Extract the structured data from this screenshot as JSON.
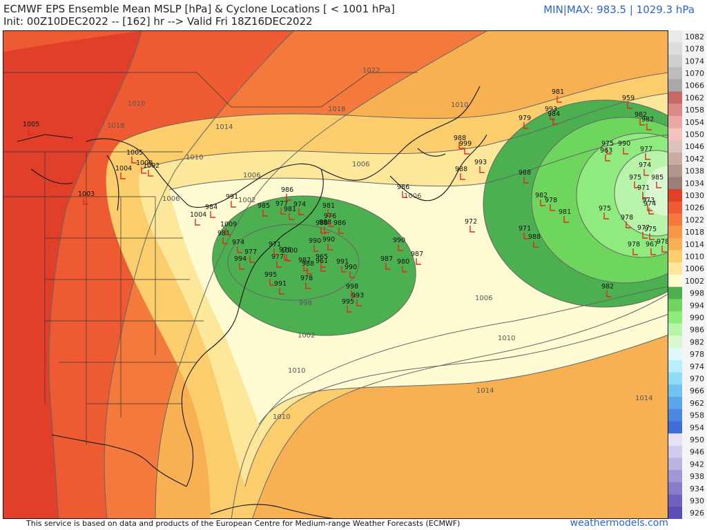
{
  "title_line1": "ECMWF EPS Ensemble Mean MSLP [hPa] & Cyclone Locations [ < 1001 hPa]",
  "title_line2": "Init: 00Z10DEC2022 -- [162] hr --> Valid Fri 18Z16DEC2022",
  "minmax": "MIN|MAX: 983.5 | 1029.3 hPa",
  "footer": "This service is based on data and products of the European Centre for Medium-range Weather Forecasts (ECMWF)",
  "brand": "weathermodels.com",
  "colors": {
    "cyclone_marker": "#e0291f",
    "contour": "#666666",
    "coast": "#111111"
  },
  "colorbar": [
    {
      "label": "1082",
      "color": "#e9e9e9"
    },
    {
      "label": "1078",
      "color": "#dcdcdc"
    },
    {
      "label": "1074",
      "color": "#cfcfcf"
    },
    {
      "label": "1070",
      "color": "#bdbdbd"
    },
    {
      "label": "1066",
      "color": "#a9a9a9"
    },
    {
      "label": "1062",
      "color": "#c76a66"
    },
    {
      "label": "1058",
      "color": "#d98a87"
    },
    {
      "label": "1054",
      "color": "#e9a6a2"
    },
    {
      "label": "1050",
      "color": "#f2c3bf"
    },
    {
      "label": "1046",
      "color": "#dcc2bc"
    },
    {
      "label": "1042",
      "color": "#c9aca4"
    },
    {
      "label": "1038",
      "color": "#b1968d"
    },
    {
      "label": "1034",
      "color": "#9a7f78"
    },
    {
      "label": "1030",
      "color": "#e23f2b"
    },
    {
      "label": "1026",
      "color": "#ee5b32"
    },
    {
      "label": "1022",
      "color": "#f4793c"
    },
    {
      "label": "1018",
      "color": "#f69748"
    },
    {
      "label": "1014",
      "color": "#f8b152"
    },
    {
      "label": "1010",
      "color": "#fbcd6c"
    },
    {
      "label": "1006",
      "color": "#fde79a"
    },
    {
      "label": "1002",
      "color": "#fffbd2"
    },
    {
      "label": "998",
      "color": "#4cb050"
    },
    {
      "label": "994",
      "color": "#6fd65d"
    },
    {
      "label": "990",
      "color": "#8feb7e"
    },
    {
      "label": "986",
      "color": "#b7f4a9"
    },
    {
      "label": "982",
      "color": "#daf8d0"
    },
    {
      "label": "978",
      "color": "#dff8fb"
    },
    {
      "label": "974",
      "color": "#b9eefa"
    },
    {
      "label": "970",
      "color": "#8fdcf5"
    },
    {
      "label": "966",
      "color": "#71c3f0"
    },
    {
      "label": "962",
      "color": "#5aa6e8"
    },
    {
      "label": "958",
      "color": "#4b88df"
    },
    {
      "label": "954",
      "color": "#3f6fd6"
    },
    {
      "label": "950",
      "color": "#e6e2f4"
    },
    {
      "label": "946",
      "color": "#d2ccec"
    },
    {
      "label": "942",
      "color": "#bab2e1"
    },
    {
      "label": "938",
      "color": "#a197d6"
    },
    {
      "label": "934",
      "color": "#887ccb"
    },
    {
      "label": "930",
      "color": "#7063c0"
    },
    {
      "label": "926",
      "color": "#5b4eb5"
    }
  ],
  "isobar_labels": [
    "1022",
    "1018",
    "1018",
    "1014",
    "1010",
    "1010",
    "1006",
    "1006",
    "1002",
    "1006",
    "1010",
    "998",
    "1002",
    "1006",
    "1010",
    "1014",
    "1014",
    "1010",
    "1006",
    "1010"
  ],
  "cyclones": [
    {
      "p": "1005"
    },
    {
      "p": "1005"
    },
    {
      "p": "1004"
    },
    {
      "p": "1002"
    },
    {
      "p": "1000"
    },
    {
      "p": "1003"
    },
    {
      "p": "1004"
    },
    {
      "p": "984"
    },
    {
      "p": "991"
    },
    {
      "p": "986"
    },
    {
      "p": "981"
    },
    {
      "p": "985"
    },
    {
      "p": "981"
    },
    {
      "p": "988"
    },
    {
      "p": "977"
    },
    {
      "p": "974"
    },
    {
      "p": "976"
    },
    {
      "p": "988"
    },
    {
      "p": "986"
    },
    {
      "p": "990"
    },
    {
      "p": "990"
    },
    {
      "p": "987"
    },
    {
      "p": "980"
    },
    {
      "p": "987"
    },
    {
      "p": "988"
    },
    {
      "p": "991"
    },
    {
      "p": "990"
    },
    {
      "p": "998"
    },
    {
      "p": "993"
    },
    {
      "p": "995"
    },
    {
      "p": "991"
    },
    {
      "p": "995"
    },
    {
      "p": "978"
    },
    {
      "p": "965"
    },
    {
      "p": "988"
    },
    {
      "p": "972"
    },
    {
      "p": "979"
    },
    {
      "p": "981"
    },
    {
      "p": "993"
    },
    {
      "p": "984"
    },
    {
      "p": "988"
    },
    {
      "p": "999"
    },
    {
      "p": "993"
    },
    {
      "p": "986"
    },
    {
      "p": "988"
    },
    {
      "p": "982"
    },
    {
      "p": "978"
    },
    {
      "p": "981"
    },
    {
      "p": "971"
    },
    {
      "p": "988"
    },
    {
      "p": "959"
    },
    {
      "p": "982"
    },
    {
      "p": "982"
    },
    {
      "p": "975"
    },
    {
      "p": "990"
    },
    {
      "p": "977"
    },
    {
      "p": "963"
    },
    {
      "p": "974"
    },
    {
      "p": "975"
    },
    {
      "p": "971"
    },
    {
      "p": "985"
    },
    {
      "p": "973"
    },
    {
      "p": "974"
    },
    {
      "p": "975"
    },
    {
      "p": "978"
    },
    {
      "p": "977"
    },
    {
      "p": "975"
    },
    {
      "p": "978"
    },
    {
      "p": "967"
    },
    {
      "p": "978"
    },
    {
      "p": "982"
    },
    {
      "p": "981"
    },
    {
      "p": "990"
    },
    {
      "p": "977"
    },
    {
      "p": "987"
    },
    {
      "p": "961"
    },
    {
      "p": "971"
    },
    {
      "p": "976"
    },
    {
      "p": "1000"
    },
    {
      "p": "977"
    },
    {
      "p": "974"
    },
    {
      "p": "994"
    },
    {
      "p": "1009"
    }
  ]
}
